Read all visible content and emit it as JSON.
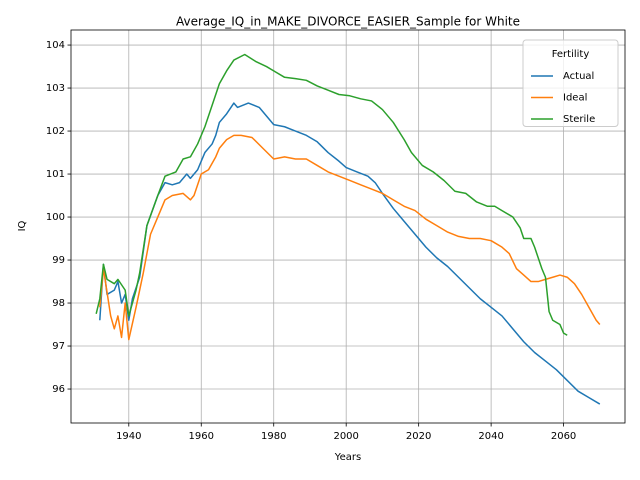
{
  "chart_data": {
    "type": "line",
    "title": "Average_IQ_in_MAKE_DIVORCE_EASIER_Sample for White",
    "xlabel": "Years",
    "ylabel": "IQ",
    "xlim": [
      1924.05,
      2076.95
    ],
    "xticks": [
      1940,
      1960,
      1980,
      2000,
      2020,
      2040,
      2060
    ],
    "ylim": [
      95.21,
      104.35
    ],
    "yticks": [
      96,
      97,
      98,
      99,
      100,
      101,
      102,
      103,
      104
    ],
    "grid": true,
    "legend_title": "Fertility",
    "legend_loc": "upper right",
    "series": [
      {
        "name": "Actual",
        "color": "#1f77b4",
        "x": [
          1932,
          1933,
          1934,
          1936,
          1937,
          1938,
          1939,
          1940,
          1941,
          1943,
          1945,
          1948,
          1950,
          1952,
          1954,
          1956,
          1957,
          1959,
          1961,
          1963,
          1964,
          1965,
          1967,
          1969,
          1970,
          1973,
          1976,
          1978,
          1980,
          1983,
          1986,
          1989,
          1992,
          1995,
          1998,
          2000,
          2003,
          2006,
          2008,
          2010,
          2013,
          2016,
          2019,
          2022,
          2025,
          2028,
          2031,
          2034,
          2037,
          2040,
          2043,
          2046,
          2049,
          2052,
          2055,
          2058,
          2061,
          2064,
          2067,
          2070
        ],
        "values": [
          97.6,
          98.9,
          98.2,
          98.3,
          98.5,
          98.0,
          98.2,
          97.6,
          98.1,
          98.6,
          99.8,
          100.5,
          100.8,
          100.75,
          100.8,
          101.0,
          100.9,
          101.1,
          101.5,
          101.7,
          101.9,
          102.2,
          102.4,
          102.65,
          102.55,
          102.65,
          102.55,
          102.35,
          102.15,
          102.1,
          102.0,
          101.9,
          101.75,
          101.5,
          101.3,
          101.15,
          101.05,
          100.95,
          100.8,
          100.55,
          100.2,
          99.9,
          99.6,
          99.3,
          99.05,
          98.85,
          98.6,
          98.35,
          98.1,
          97.9,
          97.7,
          97.4,
          97.1,
          96.85,
          96.65,
          96.45,
          96.2,
          95.95,
          95.8,
          95.65
        ]
      },
      {
        "name": "Ideal",
        "color": "#ff7f0e",
        "x": [
          1932,
          1933,
          1935,
          1936,
          1937,
          1938,
          1939,
          1940,
          1942,
          1944,
          1946,
          1948,
          1950,
          1952,
          1955,
          1957,
          1958,
          1960,
          1962,
          1964,
          1965,
          1967,
          1969,
          1971,
          1974,
          1977,
          1980,
          1983,
          1986,
          1989,
          1992,
          1995,
          1998,
          2001,
          2004,
          2007,
          2010,
          2013,
          2016,
          2019,
          2022,
          2025,
          2028,
          2031,
          2034,
          2037,
          2040,
          2043,
          2045,
          2047,
          2049,
          2051,
          2053,
          2055,
          2057,
          2059,
          2061,
          2063,
          2065,
          2067,
          2069,
          2070
        ],
        "values": [
          97.9,
          98.8,
          97.7,
          97.4,
          97.7,
          97.2,
          98.0,
          97.15,
          97.9,
          98.7,
          99.6,
          100.0,
          100.4,
          100.5,
          100.55,
          100.4,
          100.5,
          101.0,
          101.1,
          101.4,
          101.6,
          101.8,
          101.9,
          101.9,
          101.85,
          101.6,
          101.35,
          101.4,
          101.35,
          101.35,
          101.2,
          101.05,
          100.95,
          100.85,
          100.75,
          100.65,
          100.55,
          100.4,
          100.25,
          100.15,
          99.95,
          99.8,
          99.65,
          99.55,
          99.5,
          99.5,
          99.45,
          99.3,
          99.15,
          98.8,
          98.65,
          98.5,
          98.5,
          98.55,
          98.6,
          98.65,
          98.6,
          98.45,
          98.2,
          97.9,
          97.6,
          97.5
        ]
      },
      {
        "name": "Sterile",
        "color": "#2ca02c",
        "x": [
          1931,
          1932,
          1933,
          1934,
          1936,
          1937,
          1939,
          1940,
          1942,
          1943,
          1945,
          1948,
          1950,
          1953,
          1955,
          1957,
          1959,
          1961,
          1963,
          1965,
          1967,
          1969,
          1972,
          1975,
          1978,
          1980,
          1983,
          1986,
          1989,
          1992,
          1995,
          1998,
          2001,
          2004,
          2007,
          2010,
          2013,
          2016,
          2018,
          2021,
          2024,
          2027,
          2030,
          2033,
          2036,
          2039,
          2041,
          2043,
          2046,
          2048,
          2049,
          2051,
          2052,
          2054,
          2055,
          2056,
          2057,
          2059,
          2060,
          2061
        ],
        "values": [
          97.75,
          98.1,
          98.9,
          98.55,
          98.45,
          98.55,
          98.3,
          97.7,
          98.3,
          98.7,
          99.8,
          100.5,
          100.95,
          101.05,
          101.35,
          101.4,
          101.7,
          102.1,
          102.6,
          103.1,
          103.4,
          103.65,
          103.78,
          103.62,
          103.5,
          103.4,
          103.25,
          103.22,
          103.18,
          103.05,
          102.95,
          102.85,
          102.82,
          102.75,
          102.7,
          102.5,
          102.2,
          101.8,
          101.5,
          101.2,
          101.05,
          100.85,
          100.6,
          100.55,
          100.35,
          100.25,
          100.25,
          100.15,
          100.0,
          99.75,
          99.5,
          99.5,
          99.3,
          98.8,
          98.6,
          97.8,
          97.6,
          97.5,
          97.3,
          97.25
        ]
      }
    ]
  }
}
